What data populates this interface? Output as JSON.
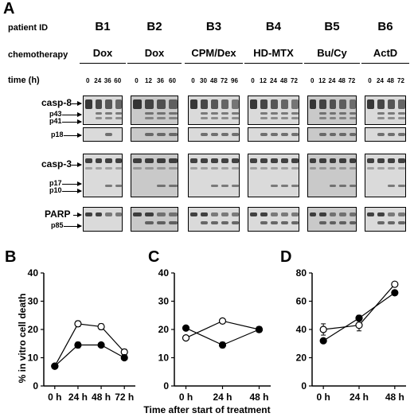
{
  "panels": {
    "a": "A",
    "b": "B",
    "c": "C",
    "d": "D"
  },
  "labels": {
    "patient_id": "patient ID",
    "chemotherapy": "chemotherapy",
    "time": "time (h)"
  },
  "patients": [
    {
      "id": "B1",
      "chemo": "Dox",
      "times": [
        "0",
        "24",
        "36",
        "60"
      ]
    },
    {
      "id": "B2",
      "chemo": "Dox",
      "times": [
        "0",
        "12",
        "36",
        "60"
      ]
    },
    {
      "id": "B3",
      "chemo": "CPM/Dex",
      "times": [
        "0",
        "30",
        "48",
        "72",
        "96"
      ]
    },
    {
      "id": "B4",
      "chemo": "HD-MTX",
      "times": [
        "0",
        "12",
        "24",
        "48",
        "72"
      ]
    },
    {
      "id": "B5",
      "chemo": "Bu/Cy",
      "times": [
        "0",
        "12",
        "24",
        "48",
        "72"
      ]
    },
    {
      "id": "B6",
      "chemo": "ActD",
      "times": [
        "0",
        "24",
        "48",
        "72"
      ]
    }
  ],
  "blots": {
    "casp8": "casp-8",
    "p43": "p43",
    "p41": "p41",
    "p18": "p18",
    "casp3": "casp-3",
    "p17": "p17",
    "p10": "p10",
    "parp": "PARP",
    "p85": "p85"
  },
  "colors": {
    "blot_bg": "#d2d2d2",
    "band": "#222222",
    "line": "#000000"
  },
  "chart_data": [
    {
      "type": "line",
      "panel": "B",
      "x": [
        "0 h",
        "24 h",
        "48 h",
        "72 h"
      ],
      "ylabel": "% in vitro cell death",
      "ylim": [
        0,
        40
      ],
      "yticks": [
        0,
        10,
        20,
        30,
        40
      ],
      "series": [
        {
          "marker": "open",
          "values": [
            7,
            22,
            21,
            12
          ],
          "errors": [
            0,
            1,
            1,
            1
          ]
        },
        {
          "marker": "filled",
          "values": [
            7,
            14.5,
            14.5,
            10
          ],
          "errors": [
            0,
            1,
            0.5,
            0.5
          ]
        }
      ]
    },
    {
      "type": "line",
      "panel": "C",
      "x": [
        "0 h",
        "24 h",
        "48 h"
      ],
      "ylim": [
        0,
        40
      ],
      "yticks": [
        0,
        10,
        20,
        30,
        40
      ],
      "series": [
        {
          "marker": "open",
          "values": [
            17,
            23,
            20
          ],
          "errors": [
            0,
            0,
            0
          ]
        },
        {
          "marker": "filled",
          "values": [
            20.5,
            14.5,
            20
          ],
          "errors": [
            0,
            1,
            1
          ]
        }
      ]
    },
    {
      "type": "line",
      "panel": "D",
      "x": [
        "0 h",
        "24 h",
        "48 h"
      ],
      "ylim": [
        0,
        80
      ],
      "yticks": [
        0,
        20,
        40,
        60,
        80
      ],
      "series": [
        {
          "marker": "open",
          "values": [
            40,
            43,
            72
          ],
          "errors": [
            4,
            4,
            0
          ]
        },
        {
          "marker": "filled",
          "values": [
            32,
            48,
            66
          ],
          "errors": [
            0,
            2,
            0
          ]
        }
      ]
    }
  ],
  "shared_xlabel": "Time after start of treatment"
}
